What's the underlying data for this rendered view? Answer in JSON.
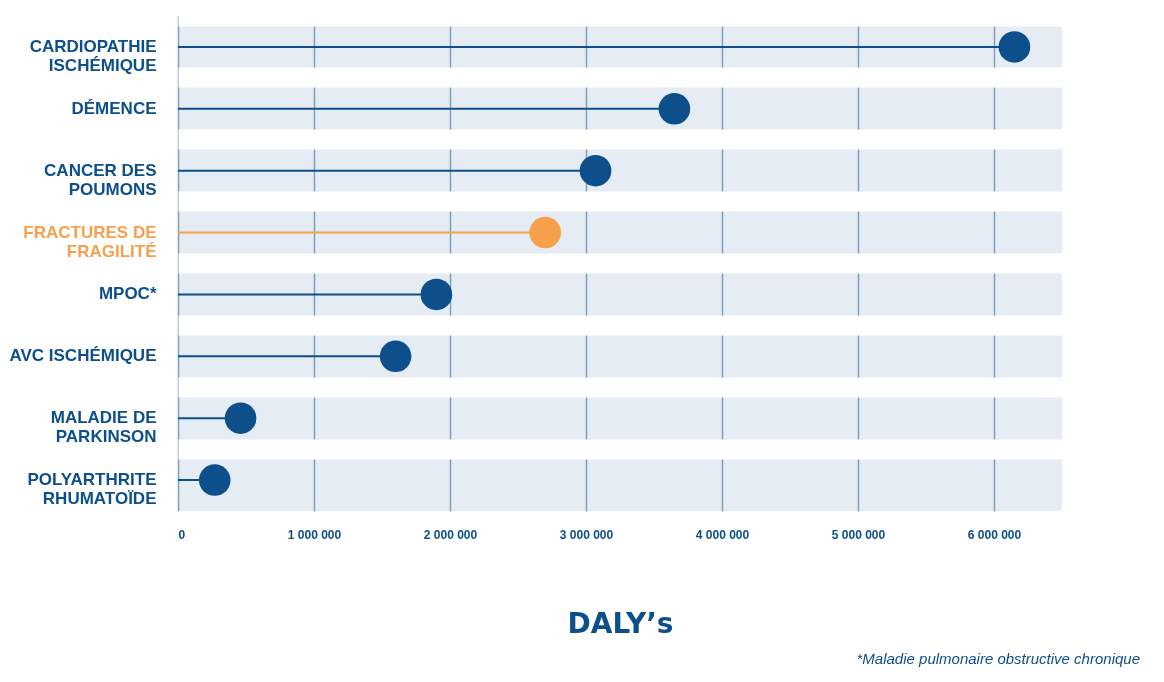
{
  "chart_data": {
    "type": "lollipop",
    "orientation": "horizontal",
    "categories": [
      "CARDIOPATHIE ISCHÉMIQUE",
      "DÉMENCE",
      "CANCER DES POUMONS",
      "FRACTURES DE FRAGILITÉ",
      "MPOC*",
      "AVC ISCHÉMIQUE",
      "MALADIE DE PARKINSON",
      "POLYARTHRITE RHUMATOÏDE"
    ],
    "values": [
      6150000,
      3650000,
      3070000,
      2700000,
      1900000,
      1600000,
      460000,
      270000
    ],
    "colors": [
      "#0d4f8b",
      "#0d4f8b",
      "#0d4f8b",
      "#f7a04b",
      "#0d4f8b",
      "#0d4f8b",
      "#0d4f8b",
      "#0d4f8b"
    ],
    "xlim": [
      0,
      6500000
    ],
    "xticks": [
      0,
      {
        "value": 1000000,
        "label": "1 000 000"
      },
      {
        "value": 2000000,
        "label": "2 000 000"
      },
      {
        "value": 3000000,
        "label": "3 000 000"
      },
      {
        "value": 4000000,
        "label": "4 000 000"
      },
      {
        "value": 5000000,
        "label": "5 000 000"
      },
      {
        "value": 6000000,
        "label": "6 000 000"
      }
    ],
    "xlabel": "DALY’s",
    "grid": "x",
    "marker": "circle",
    "annotations": [
      "*Maladie pulmonaire obstructive chronique"
    ]
  }
}
